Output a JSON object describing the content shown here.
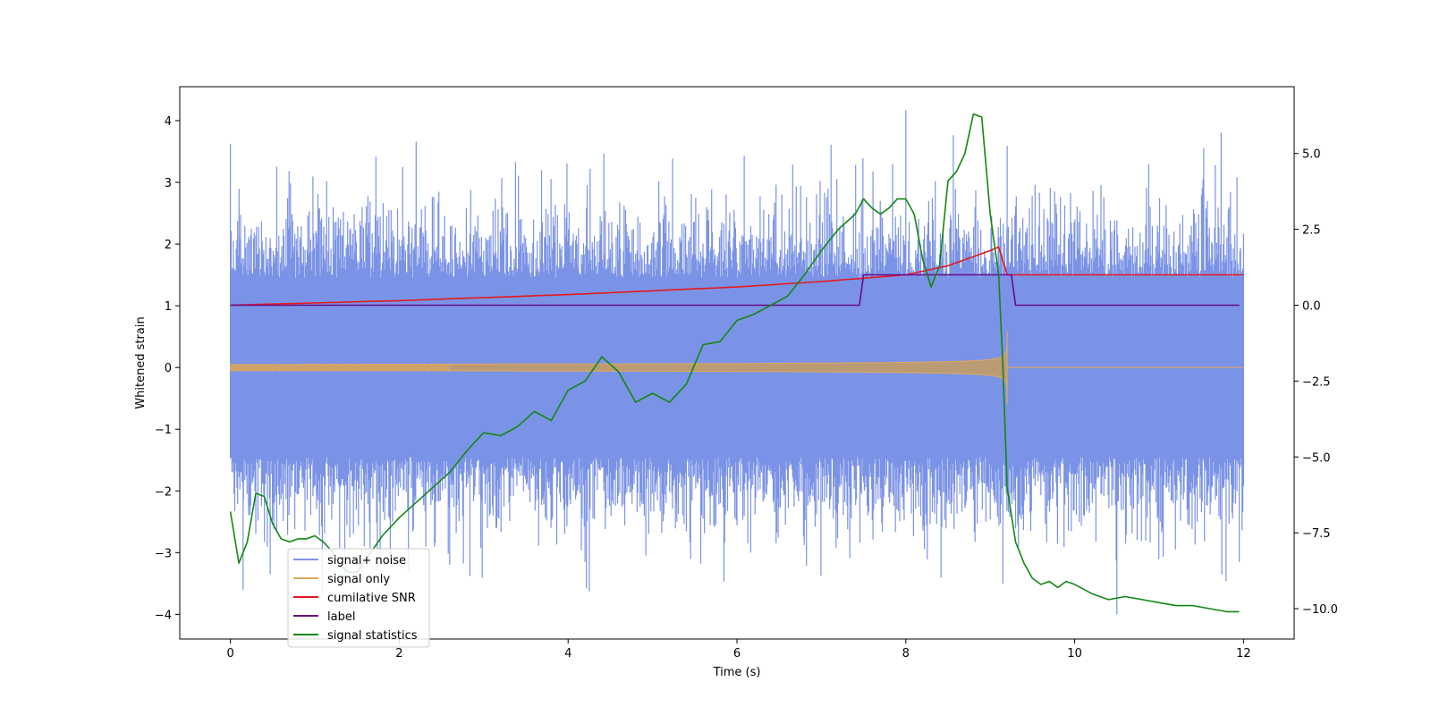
{
  "chart_data": {
    "type": "line",
    "xlabel": "Time (s)",
    "ylabel": "Whitened strain",
    "xlim": [
      -0.6,
      12.6
    ],
    "ylim_left": [
      -4.4,
      4.55
    ],
    "ylim_right": [
      -11.0,
      7.2
    ],
    "x_ticks": [
      0,
      2,
      4,
      6,
      8,
      10,
      12
    ],
    "y_left_ticks": [
      -4,
      -3,
      -2,
      -1,
      0,
      1,
      2,
      3,
      4
    ],
    "y_right_ticks": [
      -10.0,
      -7.5,
      -5.0,
      -2.5,
      0.0,
      2.5,
      5.0
    ],
    "legend_position": "lower-left",
    "colors": {
      "noise": "#7b93e6",
      "signal": "#e0a860",
      "signal_fill": "#bb9b74",
      "snr": "#e31a1c",
      "label": "#6a0a87",
      "stats": "#118811"
    },
    "series": [
      {
        "name": "signal+ noise",
        "axis": "left",
        "style": "noise band",
        "x_range": [
          0,
          12
        ],
        "core_amplitude": 1.45,
        "peak_values": [
          [
            0.0,
            3.62
          ],
          [
            0.15,
            -3.6
          ],
          [
            2.2,
            3.66
          ],
          [
            4.2,
            -3.15
          ],
          [
            8.0,
            4.17
          ],
          [
            9.2,
            3.59
          ],
          [
            9.15,
            -3.5
          ],
          [
            10.5,
            -4.0
          ],
          [
            11.95,
            -3.15
          ]
        ]
      },
      {
        "name": "signal only",
        "axis": "left",
        "style": "chirp",
        "x_range": [
          0,
          9.2
        ],
        "amplitude_start": 0.05,
        "amplitude_peak": 1.05,
        "t_merge": 9.2
      },
      {
        "name": "cumilative SNR",
        "axis": "right",
        "x": [
          0,
          2,
          4,
          6,
          7,
          8,
          8.5,
          8.8,
          9.0,
          9.1,
          9.2,
          12
        ],
        "values": [
          0.0,
          0.15,
          0.35,
          0.6,
          0.78,
          1.0,
          1.3,
          1.6,
          1.8,
          1.92,
          1.0,
          1.0
        ]
      },
      {
        "name": "label",
        "axis": "right",
        "x": [
          0,
          7.45,
          7.5,
          9.25,
          9.3,
          11.95
        ],
        "values": [
          0.0,
          0.0,
          1.0,
          1.0,
          0.0,
          0.0
        ]
      },
      {
        "name": "signal statistics",
        "axis": "right",
        "x": [
          0.0,
          0.1,
          0.2,
          0.3,
          0.4,
          0.5,
          0.6,
          0.7,
          0.8,
          0.9,
          1.0,
          1.1,
          1.2,
          1.3,
          1.4,
          1.5,
          1.6,
          1.8,
          2.0,
          2.2,
          2.4,
          2.6,
          2.8,
          3.0,
          3.2,
          3.4,
          3.6,
          3.8,
          4.0,
          4.2,
          4.4,
          4.6,
          4.8,
          5.0,
          5.2,
          5.4,
          5.6,
          5.8,
          6.0,
          6.2,
          6.4,
          6.6,
          6.8,
          7.0,
          7.2,
          7.4,
          7.5,
          7.6,
          7.7,
          7.8,
          7.9,
          8.0,
          8.1,
          8.2,
          8.3,
          8.4,
          8.5,
          8.6,
          8.7,
          8.8,
          8.9,
          9.0,
          9.1,
          9.15,
          9.2,
          9.3,
          9.4,
          9.5,
          9.6,
          9.7,
          9.8,
          9.9,
          10.0,
          10.2,
          10.4,
          10.6,
          10.8,
          11.0,
          11.2,
          11.4,
          11.6,
          11.8,
          11.95
        ],
        "values": [
          -6.8,
          -8.5,
          -7.8,
          -6.2,
          -6.3,
          -7.2,
          -7.7,
          -7.8,
          -7.7,
          -7.7,
          -7.6,
          -7.8,
          -8.1,
          -8.6,
          -8.8,
          -8.8,
          -8.4,
          -7.6,
          -7.0,
          -6.5,
          -6.0,
          -5.5,
          -4.8,
          -4.2,
          -4.3,
          -4.0,
          -3.5,
          -3.8,
          -2.8,
          -2.5,
          -1.7,
          -2.2,
          -3.2,
          -2.9,
          -3.2,
          -2.6,
          -1.3,
          -1.2,
          -0.5,
          -0.3,
          0.0,
          0.3,
          1.0,
          1.8,
          2.5,
          3.0,
          3.5,
          3.2,
          3.0,
          3.2,
          3.5,
          3.5,
          3.0,
          1.5,
          0.6,
          1.3,
          4.1,
          4.4,
          5.0,
          6.3,
          6.2,
          3.0,
          1.0,
          -2.0,
          -6.0,
          -7.8,
          -8.5,
          -9.0,
          -9.2,
          -9.1,
          -9.3,
          -9.1,
          -9.2,
          -9.5,
          -9.7,
          -9.6,
          -9.7,
          -9.8,
          -9.9,
          -9.9,
          -10.0,
          -10.1,
          -10.1
        ]
      }
    ]
  }
}
